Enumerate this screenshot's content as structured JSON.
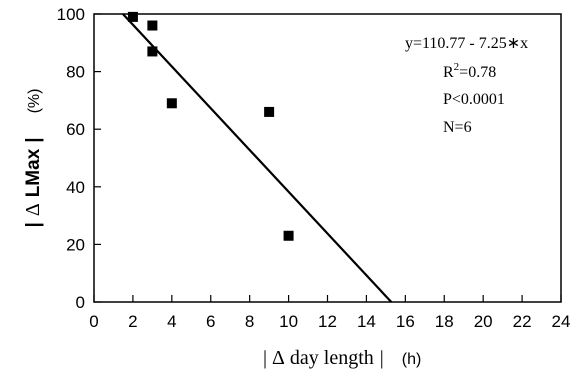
{
  "chart_data": {
    "type": "scatter",
    "x": [
      2,
      3,
      3,
      4,
      9,
      10
    ],
    "y": [
      99,
      96,
      87,
      69,
      66,
      23
    ],
    "xlim": [
      0,
      24
    ],
    "ylim": [
      0,
      100
    ],
    "xticks": [
      0,
      2,
      4,
      6,
      8,
      10,
      12,
      14,
      16,
      18,
      20,
      22,
      24
    ],
    "yticks": [
      0,
      20,
      40,
      60,
      80,
      100
    ],
    "xlabel": {
      "bar_left": "|",
      "delta": "Δ",
      "text": "day length",
      "bar_right": "|",
      "unit": "(h)"
    },
    "ylabel": {
      "bar_left": "|",
      "delta": "Δ",
      "text": "LMax",
      "bar_right": "|",
      "unit": "(%)"
    },
    "regression": {
      "intercept": 110.77,
      "slope": -7.25,
      "equation": "y=110.77 - 7.25∗x",
      "r2_prefix": "R",
      "r2_sup": "2",
      "r2_value": "=0.78",
      "p": "P<0.0001",
      "n": "N=6"
    },
    "grid": false,
    "legend": "none",
    "marker": "square",
    "color": "#000000"
  }
}
